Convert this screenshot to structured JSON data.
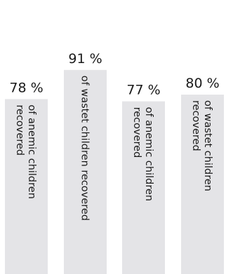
{
  "chart_data": {
    "type": "bar",
    "categories": [
      "of anemic children recovered",
      "of wastet children recovered",
      "of anemic children recovered",
      "of wastet children recovered"
    ],
    "values": [
      78,
      91,
      77,
      80
    ],
    "value_labels": [
      "78 %",
      "91 %",
      "77 %",
      "80 %"
    ],
    "bar_label_lines": [
      [
        "of anemic children",
        "recovered"
      ],
      [
        "of wastet children recovered"
      ],
      [
        "of anemic children",
        "recovered"
      ],
      [
        "of wastet children",
        "recovered"
      ]
    ],
    "ylim": [
      0,
      100
    ],
    "colors": {
      "bar": "#e4e4e7",
      "text": "#1a1a1a"
    }
  }
}
